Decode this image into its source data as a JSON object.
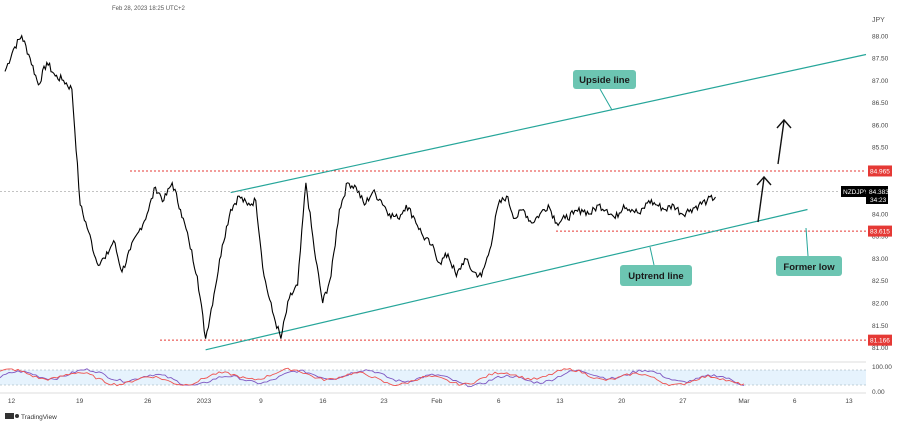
{
  "header": {
    "timestamp": "Feb 28, 2023 18:25 UTC+2"
  },
  "footer": {
    "brand": "TradingView"
  },
  "colors": {
    "price": "#000000",
    "channel": "#26a69a",
    "level": "#e53935",
    "callout_bg": "#6cc5b2",
    "rsi_band": "#e3f2fd",
    "rsi_line": "#7e57c2",
    "stoch_line": "#ef5350"
  },
  "chart_data": {
    "type": "line",
    "symbol": "NZDJPY",
    "currency": "JPY",
    "last_price": 84.383,
    "countdown": "34:23",
    "ylim": [
      80.9,
      88.4
    ],
    "y_ticks": [
      "88.00",
      "87.50",
      "87.00",
      "86.50",
      "86.00",
      "85.50",
      "85.00",
      "84.50",
      "84.00",
      "83.50",
      "83.00",
      "82.50",
      "82.00",
      "81.50",
      "81.00"
    ],
    "x_ticks": [
      "12",
      "19",
      "26",
      "2023",
      "9",
      "16",
      "23",
      "Feb",
      "6",
      "13",
      "20",
      "27",
      "Mar",
      "6",
      "13"
    ],
    "x_domain": [
      0,
      103
    ],
    "series": [
      {
        "x": [
          0,
          1,
          2,
          3,
          4,
          5,
          6,
          7,
          8,
          9,
          10,
          11,
          12,
          13,
          14,
          15,
          16,
          17,
          18,
          19,
          20,
          21,
          22,
          23,
          24,
          25,
          26,
          27,
          28,
          29,
          30,
          31,
          32,
          33,
          34,
          35,
          36,
          37,
          38,
          39,
          40,
          41,
          42,
          43,
          44,
          45,
          46,
          47,
          48,
          49,
          50,
          51,
          52,
          53,
          54,
          55,
          56,
          57,
          58,
          59,
          60,
          61,
          62,
          63,
          64,
          65,
          66,
          67,
          68,
          69,
          70,
          71,
          72,
          73,
          74,
          75,
          76,
          77,
          78,
          79,
          80,
          81,
          82,
          83,
          84,
          85
        ],
        "values": [
          87.2,
          87.7,
          88.0,
          87.5,
          86.9,
          87.4,
          87.1,
          87.0,
          86.8,
          84.2,
          83.6,
          82.9,
          83.0,
          83.4,
          82.7,
          83.2,
          83.6,
          84.0,
          84.6,
          84.3,
          84.7,
          84.1,
          83.4,
          82.6,
          81.2,
          82.2,
          83.3,
          84.1,
          84.4,
          84.2,
          84.3,
          82.6,
          81.8,
          81.2,
          82.1,
          82.4,
          84.7,
          83.2,
          82.0,
          82.6,
          84.1,
          84.7,
          84.6,
          84.2,
          84.5,
          84.3,
          84.0,
          83.9,
          84.2,
          83.9,
          83.5,
          83.3,
          82.9,
          83.1,
          82.6,
          83.0,
          82.7,
          82.6,
          83.2,
          84.2,
          84.4,
          83.9,
          84.1,
          83.8,
          84.0,
          84.2,
          83.8,
          83.9,
          84.0,
          84.1,
          84.0,
          84.2,
          84.1,
          83.9,
          84.2,
          84.1,
          84.0,
          84.3,
          84.2,
          84.1,
          84.2,
          84.0,
          84.1,
          84.2,
          84.3,
          84.38
        ],
        "style": "solid"
      }
    ],
    "rsi_panel": {
      "ticks": [
        "100.00",
        "0.00"
      ],
      "band": [
        20,
        80
      ]
    },
    "annotations": [
      {
        "kind": "hline",
        "value": 84.965,
        "label": "84.965"
      },
      {
        "kind": "hline",
        "value": 83.615,
        "label": "83.615"
      },
      {
        "kind": "hline",
        "value": 81.166,
        "label": "81.166"
      },
      {
        "kind": "trendline",
        "from": [
          27,
          84.48
        ],
        "to": [
          103,
          87.58
        ],
        "label": "Upside line"
      },
      {
        "kind": "trendline",
        "from": [
          24,
          80.95
        ],
        "to": [
          96,
          84.1
        ],
        "label": "Uptrend line"
      },
      {
        "kind": "callout",
        "text": "Former low"
      }
    ]
  }
}
